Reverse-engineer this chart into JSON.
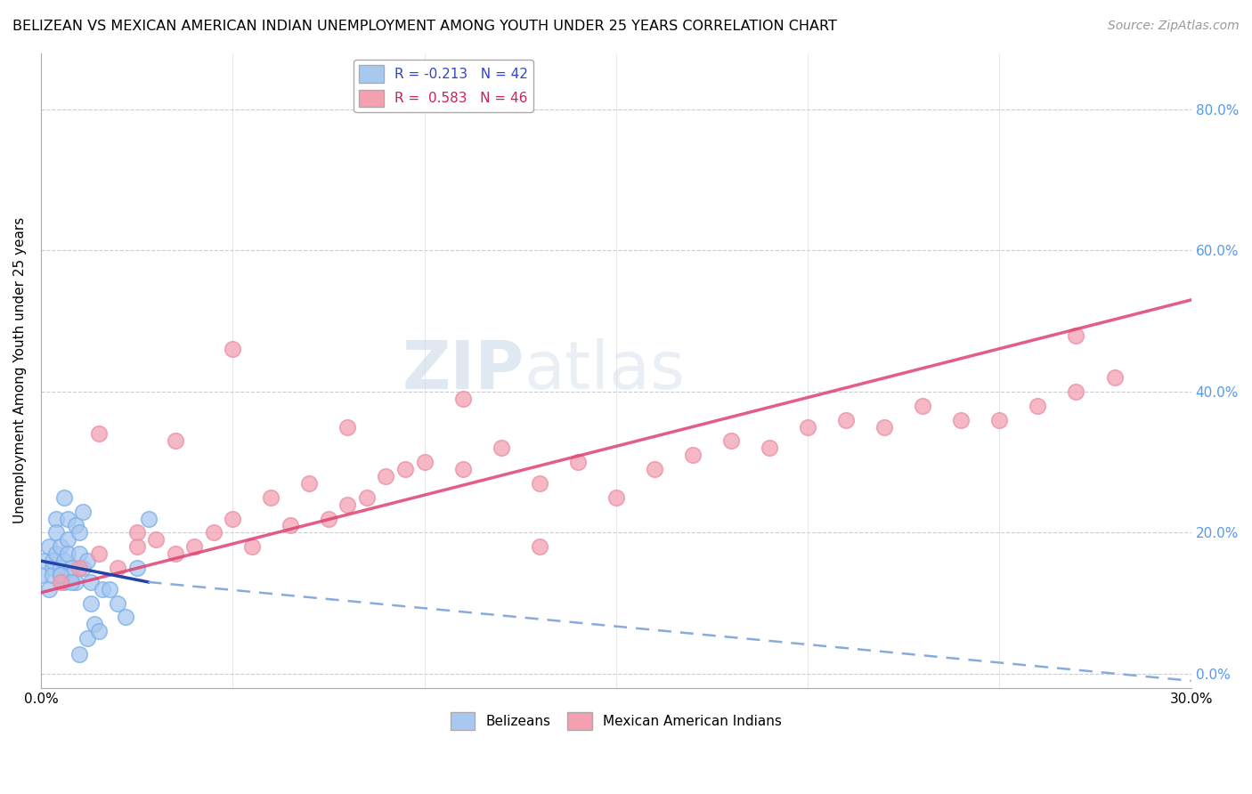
{
  "title": "BELIZEAN VS MEXICAN AMERICAN INDIAN UNEMPLOYMENT AMONG YOUTH UNDER 25 YEARS CORRELATION CHART",
  "source": "Source: ZipAtlas.com",
  "ylabel": "Unemployment Among Youth under 25 years",
  "xlim": [
    0.0,
    0.3
  ],
  "ylim": [
    -0.02,
    0.88
  ],
  "yticks_right": [
    0.0,
    0.2,
    0.4,
    0.6,
    0.8
  ],
  "ytick_labels_right": [
    "0.0%",
    "20.0%",
    "40.0%",
    "60.0%",
    "80.0%"
  ],
  "xticks": [
    0.0,
    0.05,
    0.1,
    0.15,
    0.2,
    0.25,
    0.3
  ],
  "legend_blue_label": "R = -0.213   N = 42",
  "legend_pink_label": "R =  0.583   N = 46",
  "legend_belizean": "Belizeans",
  "legend_mexican": "Mexican American Indians",
  "blue_color": "#a8c8f0",
  "pink_color": "#f4a0b0",
  "blue_line_solid_color": "#2244aa",
  "blue_line_dashed_color": "#88aadd",
  "pink_line_color": "#e8406080",
  "watermark_text": "ZIPatlas",
  "blue_scatter_x": [
    0.0,
    0.001,
    0.002,
    0.002,
    0.003,
    0.003,
    0.003,
    0.004,
    0.004,
    0.004,
    0.005,
    0.005,
    0.005,
    0.006,
    0.006,
    0.006,
    0.007,
    0.007,
    0.007,
    0.008,
    0.008,
    0.009,
    0.009,
    0.01,
    0.01,
    0.011,
    0.011,
    0.012,
    0.012,
    0.013,
    0.013,
    0.014,
    0.015,
    0.016,
    0.018,
    0.02,
    0.022,
    0.025,
    0.028,
    0.005,
    0.008,
    0.01
  ],
  "blue_scatter_y": [
    0.14,
    0.16,
    0.12,
    0.18,
    0.15,
    0.14,
    0.16,
    0.17,
    0.22,
    0.2,
    0.18,
    0.15,
    0.14,
    0.13,
    0.16,
    0.25,
    0.22,
    0.19,
    0.17,
    0.15,
    0.14,
    0.21,
    0.13,
    0.2,
    0.17,
    0.23,
    0.15,
    0.16,
    0.05,
    0.13,
    0.1,
    0.07,
    0.06,
    0.12,
    0.12,
    0.1,
    0.08,
    0.15,
    0.22,
    0.14,
    0.13,
    0.028
  ],
  "pink_scatter_x": [
    0.005,
    0.01,
    0.015,
    0.02,
    0.025,
    0.03,
    0.035,
    0.04,
    0.045,
    0.05,
    0.055,
    0.06,
    0.065,
    0.07,
    0.075,
    0.08,
    0.085,
    0.09,
    0.095,
    0.1,
    0.11,
    0.12,
    0.13,
    0.14,
    0.15,
    0.16,
    0.17,
    0.18,
    0.19,
    0.2,
    0.21,
    0.22,
    0.23,
    0.24,
    0.25,
    0.26,
    0.27,
    0.28,
    0.015,
    0.025,
    0.035,
    0.05,
    0.08,
    0.11,
    0.13,
    0.27
  ],
  "pink_scatter_y": [
    0.13,
    0.15,
    0.17,
    0.15,
    0.18,
    0.19,
    0.17,
    0.18,
    0.2,
    0.22,
    0.18,
    0.25,
    0.21,
    0.27,
    0.22,
    0.24,
    0.25,
    0.28,
    0.29,
    0.3,
    0.29,
    0.32,
    0.27,
    0.3,
    0.25,
    0.29,
    0.31,
    0.33,
    0.32,
    0.35,
    0.36,
    0.35,
    0.38,
    0.36,
    0.36,
    0.38,
    0.4,
    0.42,
    0.34,
    0.2,
    0.33,
    0.46,
    0.35,
    0.39,
    0.18,
    0.48
  ],
  "blue_trend_x0": 0.0,
  "blue_trend_x_break": 0.028,
  "blue_trend_x1": 0.3,
  "blue_trend_y0": 0.16,
  "blue_trend_y_break": 0.13,
  "blue_trend_y1": -0.01,
  "pink_trend_x0": 0.0,
  "pink_trend_x1": 0.3,
  "pink_trend_y0": 0.115,
  "pink_trend_y1": 0.53
}
